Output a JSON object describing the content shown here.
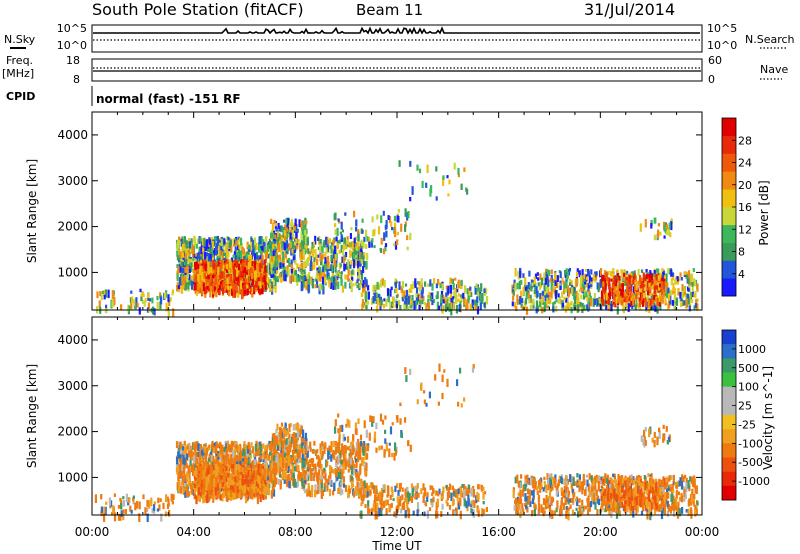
{
  "header": {
    "station": "South Pole Station (fitACF)",
    "beam": "Beam 11",
    "date": "31/Jul/2014"
  },
  "top_panels": {
    "nsky_label": "N.Sky",
    "nsearch_label": "N.Search",
    "nsky_ticks": [
      "10^5",
      "10^0"
    ],
    "nsearch_ticks": [
      "10^5",
      "10^0"
    ],
    "freq_label": "Freq.",
    "freq_unit": "[MHz]",
    "freq_ticks": [
      "18",
      "8"
    ],
    "nave_label": "Nave",
    "nave_ticks": [
      "60",
      "0"
    ],
    "cpid_label": "CPID",
    "cpid_text": "normal (fast) -151 RF"
  },
  "chart_data": [
    {
      "type": "heatmap",
      "quantity": "power",
      "xlabel": "Time UT",
      "ylabel": "Slant Range [km]",
      "colorbar_label": "Power [dB]",
      "x_range_hours": [
        0,
        24
      ],
      "ylim": [
        180,
        4500
      ],
      "xticks": [
        "00:00",
        "04:00",
        "08:00",
        "12:00",
        "16:00",
        "20:00",
        "00:00"
      ],
      "yticks": [
        1000,
        2000,
        3000,
        4000
      ],
      "colorbar_ticks": [
        "4",
        "8",
        "12",
        "16",
        "20",
        "24",
        "28"
      ],
      "colorbar_colors": [
        "#1a1aff",
        "#2255d8",
        "#3a9c5a",
        "#3cb85a",
        "#c8d838",
        "#f0c010",
        "#f08a10",
        "#ee5a0a",
        "#e82a08",
        "#e00000"
      ]
    },
    {
      "type": "heatmap",
      "quantity": "velocity",
      "xlabel": "Time UT",
      "ylabel": "Slant Range [km]",
      "colorbar_label": "Velocity [m s^-1]",
      "x_range_hours": [
        0,
        24
      ],
      "ylim": [
        180,
        4500
      ],
      "xticks": [
        "00:00",
        "04:00",
        "08:00",
        "12:00",
        "16:00",
        "20:00",
        "00:00"
      ],
      "yticks": [
        1000,
        2000,
        3000,
        4000
      ],
      "colorbar_ticks": [
        "1000",
        "500",
        "100",
        "25",
        "-25",
        "-100",
        "-500",
        "-1000"
      ],
      "colorbar_colors": [
        "#1a40d0",
        "#2a70c8",
        "#3a9a6a",
        "#3cc040",
        "#b8b8b8",
        "#b8b8b8",
        "#f0c020",
        "#f0a020",
        "#ee7a10",
        "#ee5010",
        "#e82a08",
        "#e00000"
      ]
    }
  ]
}
